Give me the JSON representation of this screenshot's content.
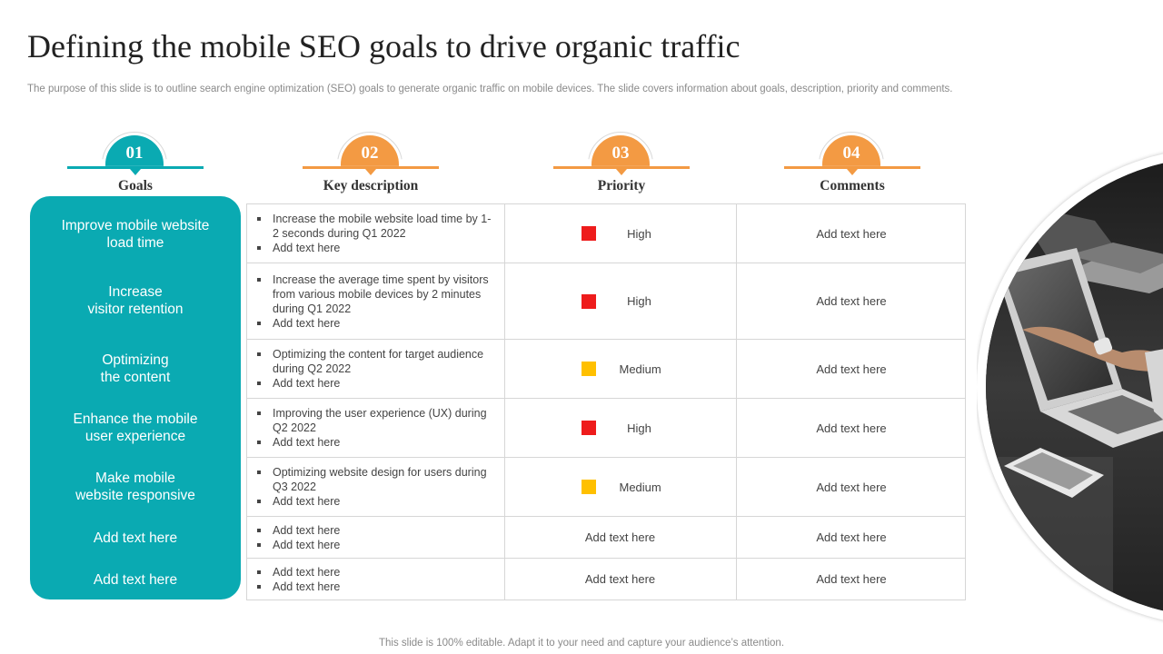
{
  "title": "Defining the mobile SEO goals to drive organic traffic",
  "subtitle": "The purpose of this slide is to outline search engine optimization (SEO) goals to generate organic traffic on mobile devices. The slide covers information about goals, description, priority and comments.",
  "colors": {
    "teal": "#0aaab2",
    "orange": "#f39a43",
    "high": "#ee1c1c",
    "medium": "#ffc000"
  },
  "headers": [
    {
      "num": "01",
      "label": "Goals"
    },
    {
      "num": "02",
      "label": "Key description"
    },
    {
      "num": "03",
      "label": "Priority"
    },
    {
      "num": "04",
      "label": "Comments"
    }
  ],
  "goals": [
    "Improve mobile website\nload time",
    "Increase\nvisitor retention",
    "Optimizing\nthe content",
    "Enhance the mobile\nuser experience",
    "Make mobile\nwebsite responsive",
    "Add text here",
    "Add text here"
  ],
  "rows": [
    {
      "bullets": [
        "Increase the mobile website load time by 1-2 seconds during Q1 2022",
        "Add text here"
      ],
      "priority": "High",
      "comment": "Add text here"
    },
    {
      "bullets": [
        "Increase the average  time spent by visitors from various  mobile devices by 2 minutes during Q1 2022",
        "Add text here"
      ],
      "priority": "High",
      "comment": "Add text here"
    },
    {
      "bullets": [
        "Optimizing the content for target audience during Q2 2022",
        "Add text here"
      ],
      "priority": "Medium",
      "comment": "Add text here"
    },
    {
      "bullets": [
        "Improving  the user experience (UX) during Q2 2022",
        "Add text here"
      ],
      "priority": "High",
      "comment": "Add text here"
    },
    {
      "bullets": [
        "Optimizing website design for users during Q3 2022",
        "Add text here"
      ],
      "priority": "Medium",
      "comment": "Add text here"
    },
    {
      "bullets": [
        "Add text here",
        "Add text here"
      ],
      "priority_text": "Add text here",
      "comment": "Add text here"
    },
    {
      "bullets": [
        "Add text here",
        "Add text here"
      ],
      "priority_text": "Add text here",
      "comment": "Add text here"
    }
  ],
  "footer": "This slide is 100% editable. Adapt it to your need and capture your audience’s attention."
}
